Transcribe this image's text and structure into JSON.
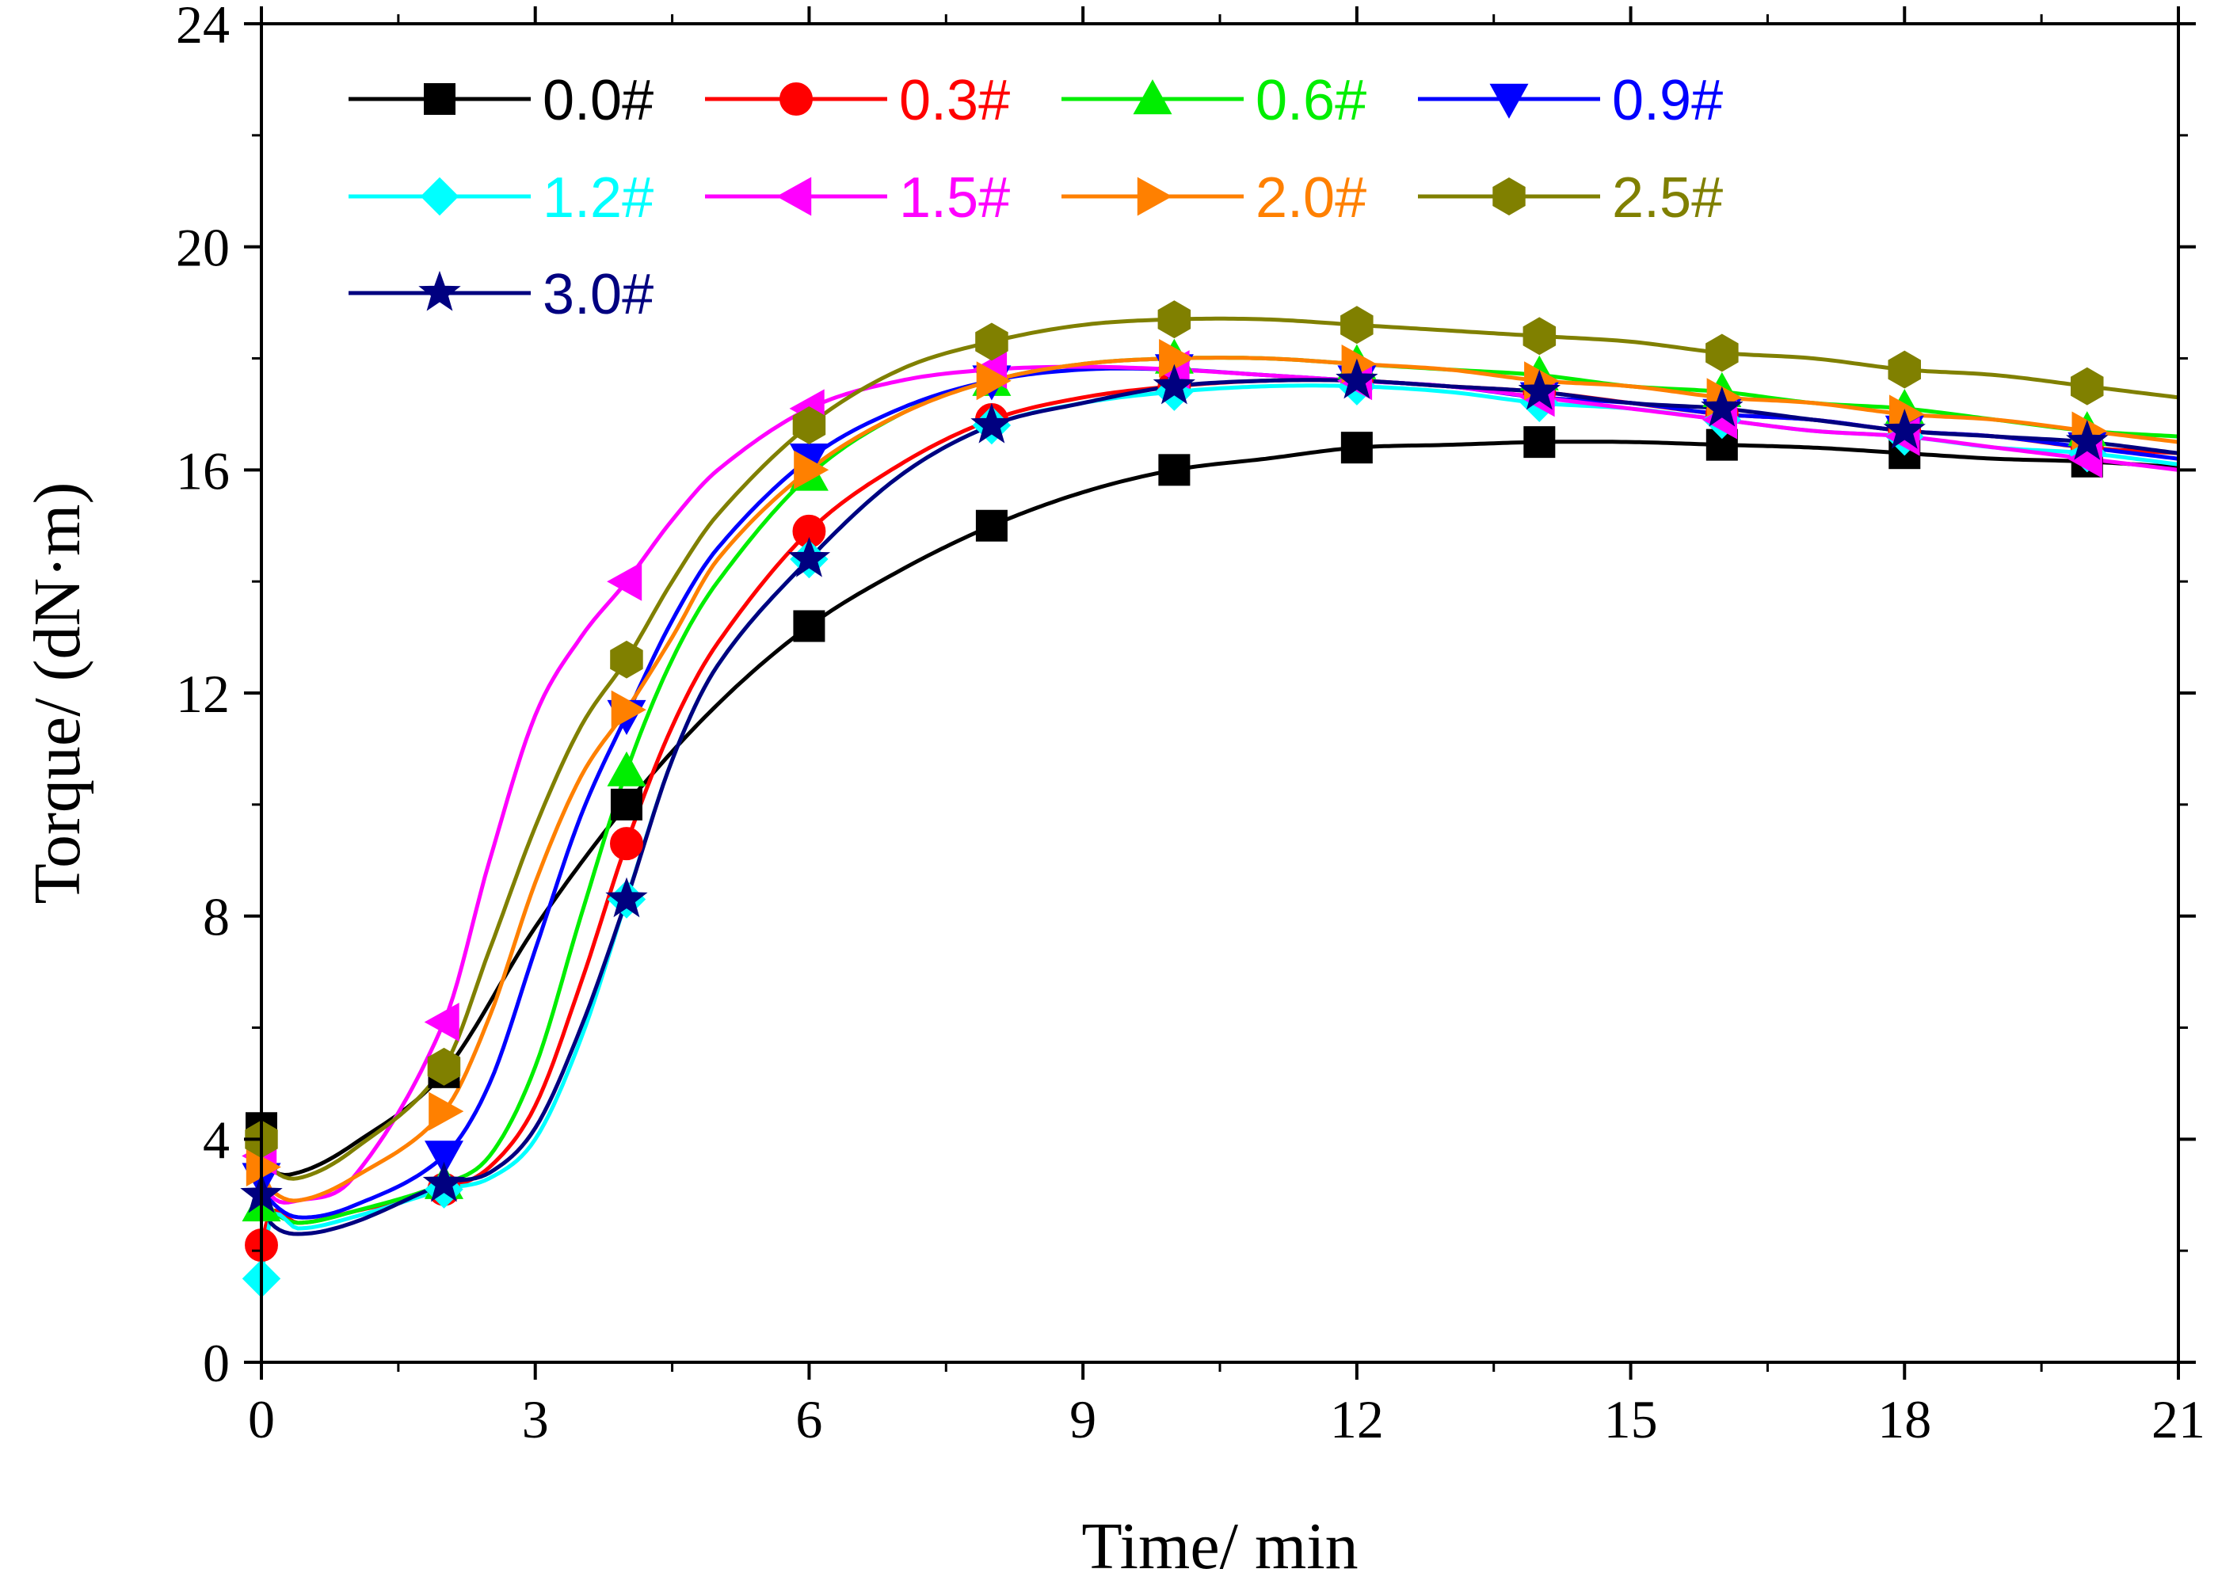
{
  "chart_data": {
    "type": "line",
    "title": "",
    "xlabel": "Time/ min",
    "ylabel": "Torque/ (dN·m)",
    "xlim": [
      0,
      21
    ],
    "ylim": [
      0,
      24
    ],
    "xticks": [
      0,
      3,
      6,
      9,
      12,
      15,
      18,
      21
    ],
    "yticks": [
      0,
      4,
      8,
      12,
      16,
      20,
      24
    ],
    "legend_position": "top-left",
    "grid": false,
    "marker_x": [
      0,
      2,
      4,
      6,
      8,
      10,
      12,
      14,
      16,
      18,
      20
    ],
    "series": [
      {
        "name": "0.0#",
        "color": "#000000",
        "marker": "square",
        "x": [
          0,
          0.1,
          0.4,
          1,
          2,
          3,
          4,
          5,
          6,
          7,
          8,
          9,
          10,
          11,
          12,
          13,
          14,
          15,
          16,
          17,
          18,
          19,
          20,
          21
        ],
        "y": [
          4.2,
          3.5,
          3.4,
          3.9,
          5.2,
          7.8,
          10.0,
          11.8,
          13.2,
          14.2,
          15.0,
          15.6,
          16.0,
          16.2,
          16.4,
          16.45,
          16.5,
          16.5,
          16.45,
          16.4,
          16.3,
          16.2,
          16.15,
          16.05
        ]
      },
      {
        "name": "0.3#",
        "color": "#ff0000",
        "marker": "circle",
        "x": [
          0,
          0.1,
          0.4,
          1,
          2,
          2.5,
          3,
          3.5,
          4,
          4.5,
          5,
          6,
          7,
          8,
          9,
          10,
          11,
          12,
          13,
          14,
          15,
          16,
          17,
          18,
          19,
          20,
          21
        ],
        "y": [
          2.1,
          2.7,
          2.5,
          2.7,
          3.1,
          3.5,
          4.6,
          6.8,
          9.3,
          11.4,
          12.9,
          14.9,
          16.1,
          16.9,
          17.3,
          17.5,
          17.6,
          17.6,
          17.5,
          17.4,
          17.2,
          17.0,
          16.9,
          16.7,
          16.6,
          16.4,
          16.3
        ]
      },
      {
        "name": "0.6#",
        "color": "#00ee00",
        "marker": "triangle-up",
        "x": [
          0,
          0.1,
          0.4,
          1,
          2,
          2.5,
          3,
          3.5,
          4,
          4.5,
          5,
          6,
          7,
          8,
          9,
          10,
          11,
          12,
          13,
          14,
          15,
          16,
          17,
          18,
          19,
          20,
          21
        ],
        "y": [
          2.8,
          2.7,
          2.5,
          2.7,
          3.2,
          3.7,
          5.3,
          8.0,
          10.6,
          12.6,
          14.0,
          15.9,
          17.0,
          17.6,
          17.9,
          18.0,
          18.0,
          17.9,
          17.8,
          17.7,
          17.5,
          17.4,
          17.2,
          17.1,
          16.9,
          16.7,
          16.6
        ]
      },
      {
        "name": "0.9#",
        "color": "#0000ff",
        "marker": "triangle-down",
        "x": [
          0,
          0.1,
          0.4,
          1,
          2,
          2.5,
          3,
          3.5,
          4,
          4.5,
          5,
          6,
          7,
          8,
          9,
          10,
          11,
          12,
          13,
          14,
          15,
          16,
          17,
          18,
          19,
          20,
          21
        ],
        "y": [
          3.3,
          2.9,
          2.6,
          2.8,
          3.7,
          5.0,
          7.4,
          9.8,
          11.6,
          13.3,
          14.6,
          16.2,
          17.1,
          17.6,
          17.8,
          17.8,
          17.7,
          17.6,
          17.5,
          17.3,
          17.2,
          17.0,
          16.9,
          16.7,
          16.6,
          16.4,
          16.2
        ]
      },
      {
        "name": "1.2#",
        "color": "#00ffff",
        "marker": "diamond",
        "x": [
          0,
          0.1,
          0.4,
          1,
          2,
          2.5,
          3,
          3.5,
          4,
          4.5,
          5,
          6,
          7,
          8,
          9,
          10,
          11,
          12,
          13,
          14,
          15,
          16,
          17,
          18,
          19,
          20,
          21
        ],
        "y": [
          1.5,
          2.6,
          2.4,
          2.6,
          3.1,
          3.3,
          4.0,
          5.8,
          8.3,
          10.8,
          12.5,
          14.4,
          15.9,
          16.8,
          17.2,
          17.4,
          17.5,
          17.5,
          17.4,
          17.2,
          17.1,
          16.9,
          16.7,
          16.6,
          16.4,
          16.3,
          16.1
        ]
      },
      {
        "name": "1.5#",
        "color": "#ff00ff",
        "marker": "triangle-left",
        "x": [
          0,
          0.1,
          0.4,
          1,
          2,
          2.5,
          3,
          3.5,
          4,
          4.5,
          5,
          6,
          7,
          8,
          9,
          10,
          11,
          12,
          13,
          14,
          15,
          16,
          17,
          18,
          19,
          20,
          21
        ],
        "y": [
          3.7,
          3.0,
          2.9,
          3.3,
          6.1,
          9.0,
          11.6,
          13.0,
          14.0,
          15.1,
          16.0,
          17.1,
          17.6,
          17.8,
          17.85,
          17.8,
          17.7,
          17.6,
          17.5,
          17.3,
          17.1,
          16.9,
          16.7,
          16.6,
          16.4,
          16.2,
          16.0
        ]
      },
      {
        "name": "2.0#",
        "color": "#ff8000",
        "marker": "triangle-right",
        "x": [
          0,
          0.1,
          0.4,
          1,
          2,
          2.5,
          3,
          3.5,
          4,
          4.5,
          5,
          6,
          7,
          8,
          9,
          10,
          11,
          12,
          13,
          14,
          15,
          16,
          17,
          18,
          19,
          20,
          21
        ],
        "y": [
          3.5,
          3.1,
          2.9,
          3.3,
          4.5,
          6.2,
          8.6,
          10.5,
          11.7,
          13.0,
          14.4,
          16.0,
          17.0,
          17.6,
          17.9,
          18.0,
          18.0,
          17.9,
          17.8,
          17.6,
          17.5,
          17.3,
          17.2,
          17.0,
          16.9,
          16.7,
          16.5
        ]
      },
      {
        "name": "2.5#",
        "color": "#808000",
        "marker": "hexagon",
        "x": [
          0,
          0.1,
          0.4,
          1,
          2,
          2.5,
          3,
          3.5,
          4,
          4.5,
          5,
          6,
          7,
          8,
          9,
          10,
          11,
          12,
          13,
          14,
          15,
          16,
          17,
          18,
          19,
          20,
          21
        ],
        "y": [
          4.0,
          3.5,
          3.3,
          3.8,
          5.3,
          7.4,
          9.6,
          11.4,
          12.6,
          14.0,
          15.2,
          16.8,
          17.8,
          18.3,
          18.6,
          18.7,
          18.7,
          18.6,
          18.5,
          18.4,
          18.3,
          18.1,
          18.0,
          17.8,
          17.7,
          17.5,
          17.3
        ]
      },
      {
        "name": "3.0#",
        "color": "#000080",
        "marker": "star",
        "x": [
          0,
          0.1,
          0.4,
          1,
          2,
          2.5,
          3,
          3.5,
          4,
          4.5,
          5,
          6,
          7,
          8,
          9,
          10,
          11,
          12,
          13,
          14,
          15,
          16,
          17,
          18,
          19,
          20,
          21
        ],
        "y": [
          3.0,
          2.5,
          2.3,
          2.5,
          3.2,
          3.4,
          4.2,
          6.0,
          8.3,
          10.8,
          12.5,
          14.4,
          15.9,
          16.8,
          17.2,
          17.5,
          17.6,
          17.6,
          17.5,
          17.4,
          17.2,
          17.1,
          16.9,
          16.7,
          16.6,
          16.5,
          16.3
        ]
      }
    ]
  }
}
